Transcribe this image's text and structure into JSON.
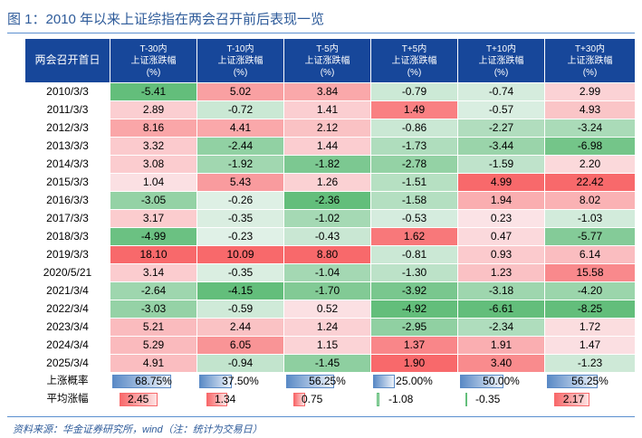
{
  "title": "图 1：2010 年以来上证综指在两会召开前后表现一览",
  "source": "资料来源：华金证券研究所，wind（注：统计为交易日）",
  "colors": {
    "pos": "#f8696b",
    "neg": "#63be7b",
    "mid": "#fcfcff",
    "header": "#17479a",
    "bar_blue": "#5a8ac6",
    "bar_red": "#f8696b",
    "bar_green": "#63be7b"
  },
  "chart_data": {
    "type": "table",
    "columns": [
      {
        "name": "两会召开首日"
      },
      {
        "period": "T-30内",
        "label": "上证涨跌幅",
        "unit": "(%)"
      },
      {
        "period": "T-10内",
        "label": "上证涨跌幅",
        "unit": "(%)"
      },
      {
        "period": "T-5内",
        "label": "上证涨跌幅",
        "unit": "(%)"
      },
      {
        "period": "T+5内",
        "label": "上证涨跌幅",
        "unit": "(%)"
      },
      {
        "period": "T+10内",
        "label": "上证涨跌幅",
        "unit": "(%)"
      },
      {
        "period": "T+30内",
        "label": "上证涨跌幅",
        "unit": "(%)"
      }
    ],
    "rows": [
      {
        "date": "2010/3/3",
        "values": [
          -5.41,
          5.02,
          3.84,
          -0.79,
          -0.74,
          2.99
        ]
      },
      {
        "date": "2011/3/3",
        "values": [
          2.89,
          -0.72,
          1.41,
          1.49,
          -0.57,
          4.93
        ]
      },
      {
        "date": "2012/3/3",
        "values": [
          8.16,
          4.41,
          2.12,
          -0.86,
          -2.27,
          -3.24
        ]
      },
      {
        "date": "2013/3/3",
        "values": [
          3.32,
          -2.44,
          1.44,
          -1.73,
          -3.44,
          -6.98
        ]
      },
      {
        "date": "2014/3/3",
        "values": [
          3.08,
          -1.92,
          -1.82,
          -2.78,
          -1.59,
          2.2
        ]
      },
      {
        "date": "2015/3/3",
        "values": [
          1.04,
          5.43,
          1.26,
          -1.51,
          4.99,
          22.42
        ]
      },
      {
        "date": "2016/3/3",
        "values": [
          -3.05,
          -0.26,
          -2.36,
          -1.58,
          1.94,
          8.02
        ]
      },
      {
        "date": "2017/3/3",
        "values": [
          3.17,
          -0.35,
          -1.02,
          -0.53,
          0.23,
          -1.03
        ]
      },
      {
        "date": "2018/3/3",
        "values": [
          -4.99,
          -0.23,
          -0.43,
          1.62,
          0.47,
          -5.77
        ]
      },
      {
        "date": "2019/3/3",
        "values": [
          18.1,
          10.09,
          8.8,
          -0.81,
          0.93,
          6.14
        ]
      },
      {
        "date": "2020/5/21",
        "values": [
          3.14,
          -0.35,
          -1.04,
          -1.3,
          1.23,
          15.58
        ]
      },
      {
        "date": "2021/3/4",
        "values": [
          -2.64,
          -4.15,
          -1.7,
          -3.92,
          -3.18,
          -4.2
        ]
      },
      {
        "date": "2022/3/4",
        "values": [
          -3.03,
          -0.59,
          0.52,
          -4.92,
          -6.61,
          -8.25
        ]
      },
      {
        "date": "2023/3/4",
        "values": [
          5.21,
          2.44,
          1.24,
          -2.95,
          -2.34,
          1.72
        ]
      },
      {
        "date": "2024/3/4",
        "values": [
          5.29,
          6.05,
          1.15,
          1.37,
          1.91,
          1.47
        ]
      },
      {
        "date": "2025/3/4",
        "values": [
          4.91,
          -0.94,
          -1.45,
          1.9,
          3.4,
          -1.23
        ]
      }
    ],
    "summary": [
      {
        "label": "上涨概率",
        "kind": "pct",
        "values": [
          0.6875,
          0.375,
          0.5625,
          0.25,
          0.5,
          0.5625
        ]
      },
      {
        "label": "平均涨幅",
        "kind": "num",
        "values": [
          2.45,
          1.34,
          0.75,
          -1.08,
          -0.35,
          2.17
        ],
        "scale_max": 2.45
      }
    ]
  }
}
